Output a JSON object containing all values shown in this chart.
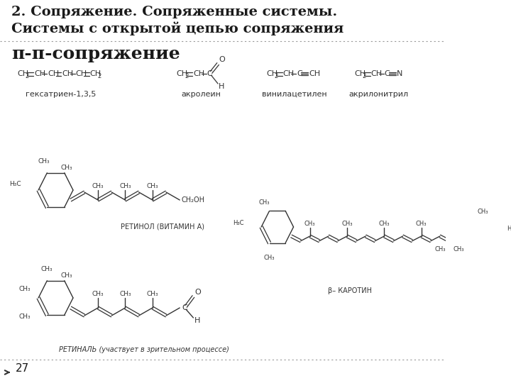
{
  "title_line1": "2. Сопряжение. Сопряженные системы.",
  "title_line2": "Системы с открытой цепью сопряжения",
  "subtitle": "π-π-сопряжение",
  "bg_color": "#ffffff",
  "title_color": "#1a1a1a",
  "text_color": "#222222",
  "separator_color": "#999999",
  "page_number": "27",
  "retinol_label": "РЕТИНОЛ (ВИТАМИН А)",
  "retinal_label": "РЕТИНАЛЬ (участвует в зрительном процессе)",
  "beta_label": "β– КАРОТИН",
  "font_size_title": 14,
  "font_size_subtitle": 18,
  "font_size_formula": 8,
  "font_size_label": 7
}
